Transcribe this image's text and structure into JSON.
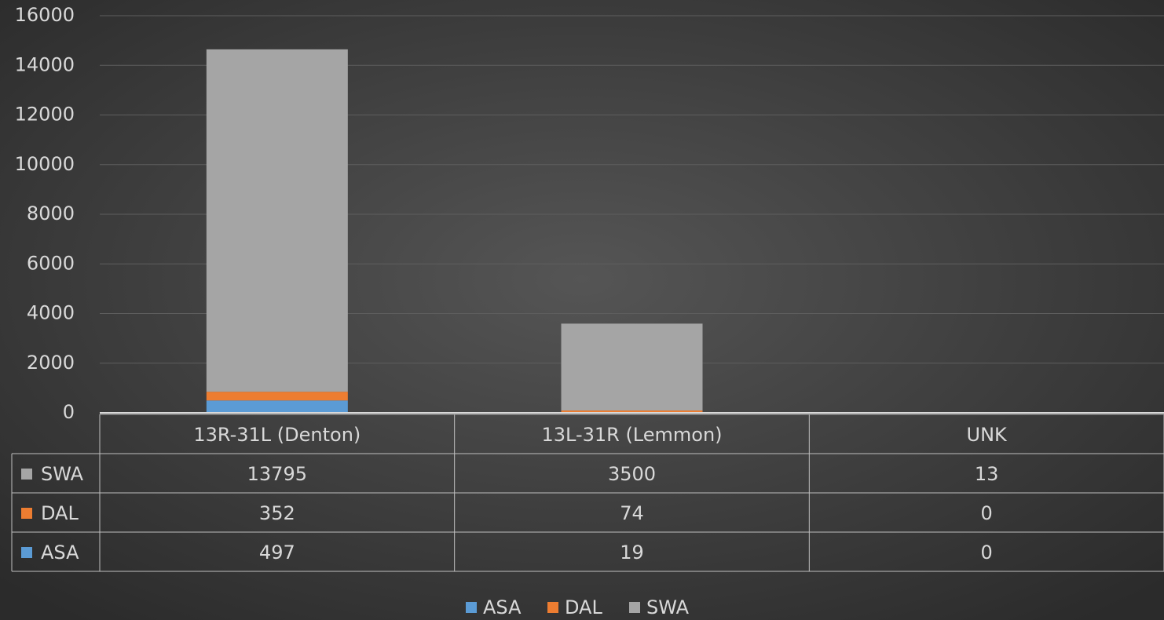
{
  "chart_data": {
    "type": "bar",
    "stacked": true,
    "categories": [
      "13R-31L (Denton)",
      "13L-31R (Lemmon)",
      "UNK"
    ],
    "series": [
      {
        "name": "ASA",
        "color": "#5b9bd5",
        "values": [
          497,
          19,
          0
        ]
      },
      {
        "name": "DAL",
        "color": "#ed7d31",
        "values": [
          352,
          74,
          0
        ]
      },
      {
        "name": "SWA",
        "color": "#a5a5a5",
        "values": [
          13795,
          3500,
          13
        ]
      }
    ],
    "ylim": [
      0,
      16000
    ],
    "yticks": [
      0,
      2000,
      4000,
      6000,
      8000,
      10000,
      12000,
      14000,
      16000
    ],
    "grid": true,
    "legend": "bottom",
    "data_table": true
  }
}
